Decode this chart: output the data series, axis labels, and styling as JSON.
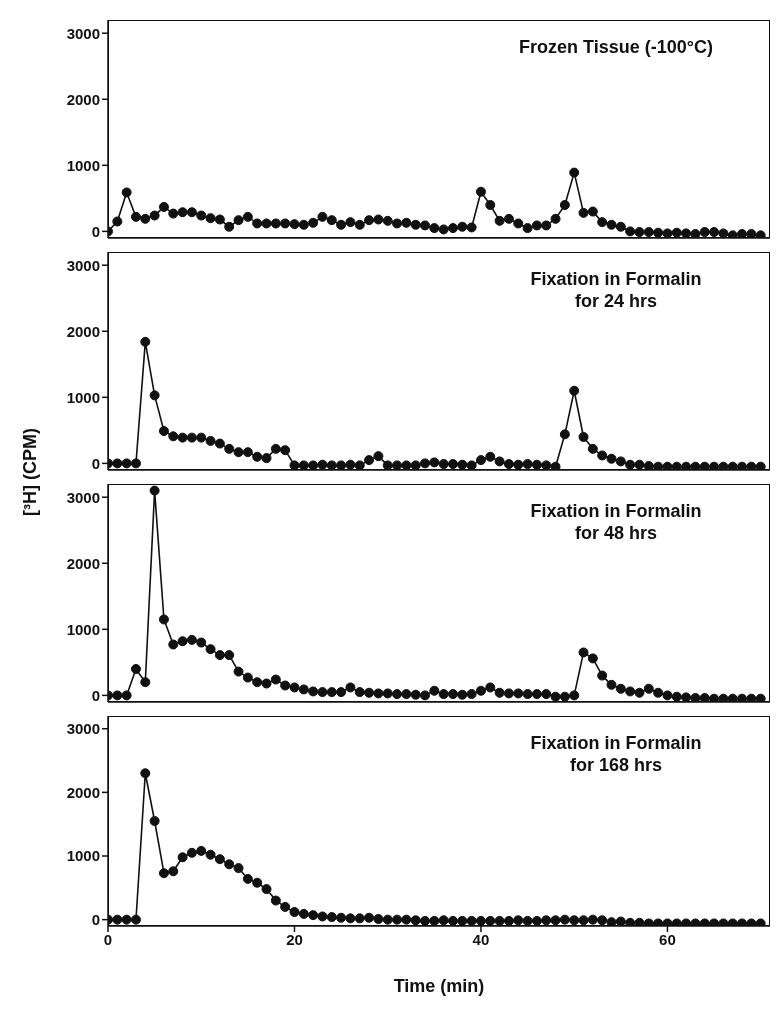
{
  "chart_data": [
    {
      "type": "line",
      "title": "Frozen Tissue (-100°C)",
      "marker": "circle",
      "tick_labels": "y",
      "xlim": [
        0,
        71
      ],
      "xticks": [
        0,
        20,
        40,
        60
      ],
      "ylim": [
        -100,
        3200
      ],
      "yticks": [
        0,
        1000,
        2000,
        3000
      ],
      "x": [
        0,
        1,
        2,
        3,
        4,
        5,
        6,
        7,
        8,
        9,
        10,
        11,
        12,
        13,
        14,
        15,
        16,
        17,
        18,
        19,
        20,
        21,
        22,
        23,
        24,
        25,
        26,
        27,
        28,
        29,
        30,
        31,
        32,
        33,
        34,
        35,
        36,
        37,
        38,
        39,
        40,
        41,
        42,
        43,
        44,
        45,
        46,
        47,
        48,
        49,
        50,
        51,
        52,
        53,
        54,
        55,
        56,
        57,
        58,
        59,
        60,
        61,
        62,
        63,
        64,
        65,
        66,
        67,
        68,
        69,
        70
      ],
      "series": [
        {
          "color": "#111111",
          "values": [
            0,
            150,
            590,
            220,
            190,
            240,
            370,
            270,
            290,
            290,
            240,
            200,
            180,
            70,
            170,
            220,
            120,
            120,
            120,
            120,
            110,
            100,
            130,
            220,
            170,
            100,
            140,
            100,
            170,
            180,
            160,
            120,
            130,
            100,
            90,
            50,
            30,
            50,
            70,
            60,
            600,
            400,
            160,
            190,
            120,
            50,
            90,
            90,
            190,
            400,
            890,
            280,
            300,
            140,
            100,
            70,
            0,
            -10,
            -10,
            -20,
            -30,
            -20,
            -30,
            -40,
            -10,
            -10,
            -30,
            -60,
            -40,
            -40,
            -60
          ]
        }
      ]
    },
    {
      "type": "line",
      "title": "Fixation in Formalin\nfor 24 hrs",
      "ylabel": "[³H] (CPM)",
      "marker": "circle",
      "tick_labels": "y",
      "xlim": [
        0,
        71
      ],
      "xticks": [
        0,
        20,
        40,
        60
      ],
      "ylim": [
        -100,
        3200
      ],
      "yticks": [
        0,
        1000,
        2000,
        3000
      ],
      "x": [
        0,
        1,
        2,
        3,
        4,
        5,
        6,
        7,
        8,
        9,
        10,
        11,
        12,
        13,
        14,
        15,
        16,
        17,
        18,
        19,
        20,
        21,
        22,
        23,
        24,
        25,
        26,
        27,
        28,
        29,
        30,
        31,
        32,
        33,
        34,
        35,
        36,
        37,
        38,
        39,
        40,
        41,
        42,
        43,
        44,
        45,
        46,
        47,
        48,
        49,
        50,
        51,
        52,
        53,
        54,
        55,
        56,
        57,
        58,
        59,
        60,
        61,
        62,
        63,
        64,
        65,
        66,
        67,
        68,
        69,
        70
      ],
      "series": [
        {
          "color": "#111111",
          "values": [
            0,
            0,
            0,
            0,
            1840,
            1030,
            490,
            410,
            390,
            390,
            390,
            340,
            300,
            220,
            170,
            170,
            100,
            80,
            220,
            200,
            -30,
            -30,
            -30,
            -20,
            -30,
            -30,
            -20,
            -30,
            50,
            110,
            -30,
            -30,
            -30,
            -30,
            0,
            15,
            -10,
            -10,
            -20,
            -30,
            50,
            100,
            30,
            -10,
            -20,
            -10,
            -20,
            -30,
            -50,
            440,
            1100,
            400,
            220,
            120,
            70,
            30,
            -20,
            -20,
            -40,
            -50,
            -50,
            -50,
            -50,
            -50,
            -50,
            -50,
            -50,
            -50,
            -50,
            -50,
            -50
          ]
        }
      ]
    },
    {
      "type": "line",
      "title": "Fixation in Formalin\nfor 48 hrs",
      "marker": "circle",
      "tick_labels": "y",
      "xlim": [
        0,
        71
      ],
      "xticks": [
        0,
        20,
        40,
        60
      ],
      "ylim": [
        -100,
        3200
      ],
      "yticks": [
        0,
        1000,
        2000,
        3000
      ],
      "x": [
        0,
        1,
        2,
        3,
        4,
        5,
        6,
        7,
        8,
        9,
        10,
        11,
        12,
        13,
        14,
        15,
        16,
        17,
        18,
        19,
        20,
        21,
        22,
        23,
        24,
        25,
        26,
        27,
        28,
        29,
        30,
        31,
        32,
        33,
        34,
        35,
        36,
        37,
        38,
        39,
        40,
        41,
        42,
        43,
        44,
        45,
        46,
        47,
        48,
        49,
        50,
        51,
        52,
        53,
        54,
        55,
        56,
        57,
        58,
        59,
        60,
        61,
        62,
        63,
        64,
        65,
        66,
        67,
        68,
        69,
        70
      ],
      "series": [
        {
          "color": "#111111",
          "values": [
            0,
            0,
            0,
            400,
            200,
            3100,
            1150,
            770,
            820,
            840,
            800,
            700,
            610,
            610,
            360,
            270,
            200,
            180,
            240,
            150,
            120,
            90,
            60,
            50,
            50,
            50,
            120,
            50,
            40,
            30,
            30,
            20,
            20,
            10,
            0,
            70,
            20,
            20,
            10,
            20,
            70,
            120,
            40,
            30,
            30,
            20,
            20,
            20,
            -20,
            -20,
            0,
            650,
            560,
            300,
            160,
            100,
            60,
            40,
            100,
            40,
            0,
            -20,
            -30,
            -40,
            -40,
            -50,
            -50,
            -50,
            -50,
            -50,
            -50
          ]
        }
      ]
    },
    {
      "type": "line",
      "title": "Fixation in Formalin\nfor 168 hrs",
      "xlabel": "Time (min)",
      "marker": "circle",
      "xlim": [
        0,
        71
      ],
      "xticks": [
        0,
        20,
        40,
        60
      ],
      "ylim": [
        -100,
        3200
      ],
      "yticks": [
        0,
        1000,
        2000,
        3000
      ],
      "x": [
        0,
        1,
        2,
        3,
        4,
        5,
        6,
        7,
        8,
        9,
        10,
        11,
        12,
        13,
        14,
        15,
        16,
        17,
        18,
        19,
        20,
        21,
        22,
        23,
        24,
        25,
        26,
        27,
        28,
        29,
        30,
        31,
        32,
        33,
        34,
        35,
        36,
        37,
        38,
        39,
        40,
        41,
        42,
        43,
        44,
        45,
        46,
        47,
        48,
        49,
        50,
        51,
        52,
        53,
        54,
        55,
        56,
        57,
        58,
        59,
        60,
        61,
        62,
        63,
        64,
        65,
        66,
        67,
        68,
        69,
        70
      ],
      "series": [
        {
          "color": "#111111",
          "values": [
            0,
            0,
            0,
            0,
            2300,
            1550,
            730,
            760,
            980,
            1050,
            1080,
            1020,
            950,
            870,
            810,
            640,
            580,
            480,
            300,
            200,
            120,
            90,
            70,
            50,
            40,
            30,
            20,
            20,
            30,
            10,
            0,
            0,
            0,
            -10,
            -20,
            -20,
            -10,
            -20,
            -20,
            -20,
            -20,
            -20,
            -20,
            -20,
            -10,
            -20,
            -20,
            -10,
            -10,
            0,
            -10,
            -10,
            0,
            -10,
            -40,
            -30,
            -50,
            -50,
            -60,
            -60,
            -60,
            -60,
            -60,
            -60,
            -60,
            -60,
            -60,
            -60,
            -60,
            -60,
            -60
          ]
        }
      ]
    }
  ]
}
